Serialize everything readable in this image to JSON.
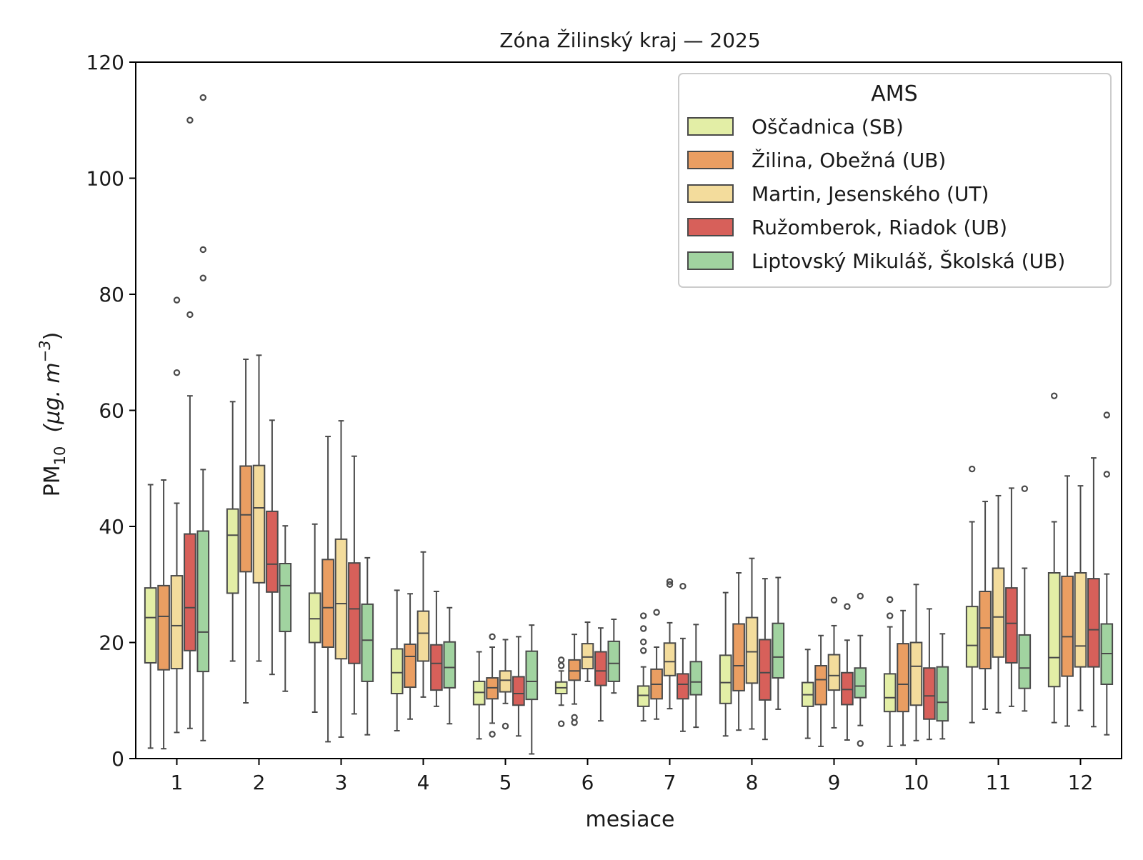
{
  "chart_data": {
    "type": "box",
    "title": "Zóna Žilinský kraj —  2025",
    "xlabel": "mesiace",
    "ylabel_main": "PM",
    "ylabel_sub": "10",
    "ylabel_units": "(μg. m",
    "ylabel_exp": "−3",
    "ylabel_close": ")",
    "ylim": [
      0,
      120
    ],
    "yticks": [
      0,
      20,
      40,
      60,
      80,
      100,
      120
    ],
    "categories": [
      "1",
      "2",
      "3",
      "4",
      "5",
      "6",
      "7",
      "8",
      "9",
      "10",
      "11",
      "12"
    ],
    "legend_title": "AMS",
    "legend_position": "top-right",
    "series": [
      {
        "name": "Oščadnica (SB)",
        "color": "#e3eea6",
        "boxes": [
          {
            "whislo": 1.8,
            "q1": 16.5,
            "med": 24.3,
            "q3": 29.4,
            "whishi": 47.2,
            "fliers": []
          },
          {
            "whislo": 16.8,
            "q1": 28.5,
            "med": 38.5,
            "q3": 43.0,
            "whishi": 61.5,
            "fliers": []
          },
          {
            "whislo": 8.0,
            "q1": 20.0,
            "med": 24.1,
            "q3": 28.5,
            "whishi": 40.4,
            "fliers": []
          },
          {
            "whislo": 4.8,
            "q1": 11.2,
            "med": 14.8,
            "q3": 18.9,
            "whishi": 29.0,
            "fliers": []
          },
          {
            "whislo": 3.4,
            "q1": 9.3,
            "med": 11.4,
            "q3": 13.3,
            "whishi": 18.4,
            "fliers": []
          },
          {
            "whislo": 9.2,
            "q1": 11.2,
            "med": 12.2,
            "q3": 13.2,
            "whishi": 15.1,
            "fliers": [
              16.0,
              17.0,
              6.0
            ]
          },
          {
            "whislo": 6.5,
            "q1": 9.0,
            "med": 10.9,
            "q3": 12.5,
            "whishi": 15.8,
            "fliers": [
              18.6,
              20.1,
              22.4,
              24.6
            ]
          },
          {
            "whislo": 3.9,
            "q1": 9.5,
            "med": 13.1,
            "q3": 17.8,
            "whishi": 28.6,
            "fliers": []
          },
          {
            "whislo": 3.5,
            "q1": 9.0,
            "med": 11.0,
            "q3": 13.1,
            "whishi": 18.8,
            "fliers": []
          },
          {
            "whislo": 2.1,
            "q1": 8.1,
            "med": 10.5,
            "q3": 14.6,
            "whishi": 22.7,
            "fliers": [
              24.6,
              27.4
            ]
          },
          {
            "whislo": 6.2,
            "q1": 15.8,
            "med": 19.5,
            "q3": 26.2,
            "whishi": 40.8,
            "fliers": [
              49.9
            ]
          },
          {
            "whislo": 6.2,
            "q1": 12.4,
            "med": 17.4,
            "q3": 32.0,
            "whishi": 40.8,
            "fliers": [
              62.5
            ]
          }
        ]
      },
      {
        "name": "Žilina, Obežná (UB)",
        "color": "#ea9e62",
        "boxes": [
          {
            "whislo": 1.7,
            "q1": 15.3,
            "med": 24.5,
            "q3": 29.8,
            "whishi": 48.0,
            "fliers": []
          },
          {
            "whislo": 9.6,
            "q1": 32.2,
            "med": 42.0,
            "q3": 50.4,
            "whishi": 68.8,
            "fliers": []
          },
          {
            "whislo": 2.9,
            "q1": 19.2,
            "med": 26.0,
            "q3": 34.3,
            "whishi": 55.5,
            "fliers": []
          },
          {
            "whislo": 6.8,
            "q1": 12.3,
            "med": 17.6,
            "q3": 19.7,
            "whishi": 28.4,
            "fliers": []
          },
          {
            "whislo": 6.1,
            "q1": 10.3,
            "med": 12.2,
            "q3": 13.9,
            "whishi": 19.2,
            "fliers": [
              21.0,
              4.2
            ]
          },
          {
            "whislo": 9.4,
            "q1": 13.5,
            "med": 15.1,
            "q3": 17.0,
            "whishi": 21.4,
            "fliers": [
              7.1,
              6.2
            ]
          },
          {
            "whislo": 6.8,
            "q1": 10.3,
            "med": 12.8,
            "q3": 15.4,
            "whishi": 19.2,
            "fliers": [
              25.2
            ]
          },
          {
            "whislo": 4.9,
            "q1": 11.7,
            "med": 16.0,
            "q3": 23.2,
            "whishi": 32.0,
            "fliers": []
          },
          {
            "whislo": 2.1,
            "q1": 9.3,
            "med": 13.6,
            "q3": 16.0,
            "whishi": 21.2,
            "fliers": []
          },
          {
            "whislo": 2.3,
            "q1": 8.1,
            "med": 12.8,
            "q3": 19.8,
            "whishi": 25.5,
            "fliers": []
          },
          {
            "whislo": 8.5,
            "q1": 15.5,
            "med": 22.5,
            "q3": 28.8,
            "whishi": 44.3,
            "fliers": []
          },
          {
            "whislo": 5.6,
            "q1": 14.2,
            "med": 21.0,
            "q3": 31.4,
            "whishi": 48.7,
            "fliers": []
          }
        ]
      },
      {
        "name": "Martin, Jesenského (UT)",
        "color": "#f3dc9c",
        "boxes": [
          {
            "whislo": 4.5,
            "q1": 15.5,
            "med": 22.9,
            "q3": 31.5,
            "whishi": 44.0,
            "fliers": [
              66.5,
              79.0
            ]
          },
          {
            "whislo": 16.8,
            "q1": 30.3,
            "med": 43.2,
            "q3": 50.5,
            "whishi": 69.5,
            "fliers": []
          },
          {
            "whislo": 3.7,
            "q1": 17.2,
            "med": 26.7,
            "q3": 37.8,
            "whishi": 58.2,
            "fliers": []
          },
          {
            "whislo": 10.6,
            "q1": 16.8,
            "med": 21.6,
            "q3": 25.4,
            "whishi": 35.6,
            "fliers": []
          },
          {
            "whislo": 9.5,
            "q1": 11.5,
            "med": 13.5,
            "q3": 15.1,
            "whishi": 20.5,
            "fliers": [
              5.6
            ]
          },
          {
            "whislo": 13.3,
            "q1": 15.5,
            "med": 17.5,
            "q3": 19.8,
            "whishi": 23.5,
            "fliers": []
          },
          {
            "whislo": 8.6,
            "q1": 14.3,
            "med": 16.7,
            "q3": 19.9,
            "whishi": 23.4,
            "fliers": [
              30.0,
              30.5
            ]
          },
          {
            "whislo": 5.1,
            "q1": 13.0,
            "med": 18.4,
            "q3": 24.3,
            "whishi": 34.5,
            "fliers": []
          },
          {
            "whislo": 5.3,
            "q1": 11.8,
            "med": 14.3,
            "q3": 17.9,
            "whishi": 22.9,
            "fliers": [
              27.3
            ]
          },
          {
            "whislo": 3.1,
            "q1": 9.2,
            "med": 15.9,
            "q3": 20.0,
            "whishi": 30.0,
            "fliers": []
          },
          {
            "whislo": 7.9,
            "q1": 17.5,
            "med": 24.4,
            "q3": 32.8,
            "whishi": 45.3,
            "fliers": []
          },
          {
            "whislo": 8.3,
            "q1": 15.8,
            "med": 19.4,
            "q3": 32.0,
            "whishi": 47.0,
            "fliers": []
          }
        ]
      },
      {
        "name": "Ružomberok, Riadok (UB)",
        "color": "#d7605a",
        "boxes": [
          {
            "whislo": 5.2,
            "q1": 18.6,
            "med": 26.0,
            "q3": 38.7,
            "whishi": 62.5,
            "fliers": [
              76.5,
              110.0
            ]
          },
          {
            "whislo": 14.5,
            "q1": 28.7,
            "med": 33.5,
            "q3": 42.6,
            "whishi": 58.3,
            "fliers": []
          },
          {
            "whislo": 7.7,
            "q1": 16.4,
            "med": 25.8,
            "q3": 33.7,
            "whishi": 52.1,
            "fliers": []
          },
          {
            "whislo": 9.0,
            "q1": 11.8,
            "med": 16.4,
            "q3": 19.6,
            "whishi": 28.8,
            "fliers": []
          },
          {
            "whislo": 3.9,
            "q1": 9.2,
            "med": 11.2,
            "q3": 14.1,
            "whishi": 21.0,
            "fliers": []
          },
          {
            "whislo": 6.5,
            "q1": 12.6,
            "med": 15.1,
            "q3": 18.4,
            "whishi": 22.5,
            "fliers": []
          },
          {
            "whislo": 4.7,
            "q1": 10.3,
            "med": 12.8,
            "q3": 14.6,
            "whishi": 20.7,
            "fliers": [
              29.7
            ]
          },
          {
            "whislo": 3.3,
            "q1": 10.1,
            "med": 14.8,
            "q3": 20.5,
            "whishi": 31.0,
            "fliers": []
          },
          {
            "whislo": 3.2,
            "q1": 9.3,
            "med": 11.9,
            "q3": 14.8,
            "whishi": 20.4,
            "fliers": [
              26.2
            ]
          },
          {
            "whislo": 3.3,
            "q1": 6.8,
            "med": 10.8,
            "q3": 15.6,
            "whishi": 25.8,
            "fliers": []
          },
          {
            "whislo": 9.0,
            "q1": 16.5,
            "med": 23.3,
            "q3": 29.4,
            "whishi": 46.6,
            "fliers": []
          },
          {
            "whislo": 5.5,
            "q1": 15.8,
            "med": 22.2,
            "q3": 31.0,
            "whishi": 51.8,
            "fliers": []
          }
        ]
      },
      {
        "name": "Liptovský Mikuláš, Školská (UB)",
        "color": "#a1d3a0",
        "boxes": [
          {
            "whislo": 3.1,
            "q1": 15.0,
            "med": 21.8,
            "q3": 39.2,
            "whishi": 49.8,
            "fliers": [
              82.8,
              87.7,
              113.9
            ]
          },
          {
            "whislo": 11.6,
            "q1": 21.9,
            "med": 29.8,
            "q3": 33.6,
            "whishi": 40.1,
            "fliers": []
          },
          {
            "whislo": 4.1,
            "q1": 13.3,
            "med": 20.4,
            "q3": 26.6,
            "whishi": 34.6,
            "fliers": []
          },
          {
            "whislo": 6.0,
            "q1": 12.2,
            "med": 15.7,
            "q3": 20.1,
            "whishi": 26.0,
            "fliers": []
          },
          {
            "whislo": 0.8,
            "q1": 10.2,
            "med": 13.3,
            "q3": 18.5,
            "whishi": 23.0,
            "fliers": []
          },
          {
            "whislo": 11.3,
            "q1": 13.3,
            "med": 16.4,
            "q3": 20.2,
            "whishi": 24.0,
            "fliers": []
          },
          {
            "whislo": 5.4,
            "q1": 11.0,
            "med": 13.2,
            "q3": 16.7,
            "whishi": 23.1,
            "fliers": []
          },
          {
            "whislo": 8.5,
            "q1": 13.9,
            "med": 17.5,
            "q3": 23.3,
            "whishi": 31.2,
            "fliers": []
          },
          {
            "whislo": 5.7,
            "q1": 10.5,
            "med": 12.5,
            "q3": 15.6,
            "whishi": 21.2,
            "fliers": [
              28.0,
              2.6
            ]
          },
          {
            "whislo": 3.4,
            "q1": 6.5,
            "med": 9.7,
            "q3": 15.8,
            "whishi": 21.5,
            "fliers": []
          },
          {
            "whislo": 8.2,
            "q1": 12.1,
            "med": 15.6,
            "q3": 21.3,
            "whishi": 32.8,
            "fliers": [
              46.5
            ]
          },
          {
            "whislo": 4.1,
            "q1": 12.8,
            "med": 18.1,
            "q3": 23.2,
            "whishi": 31.8,
            "fliers": [
              49.0,
              59.2
            ]
          }
        ]
      }
    ]
  }
}
